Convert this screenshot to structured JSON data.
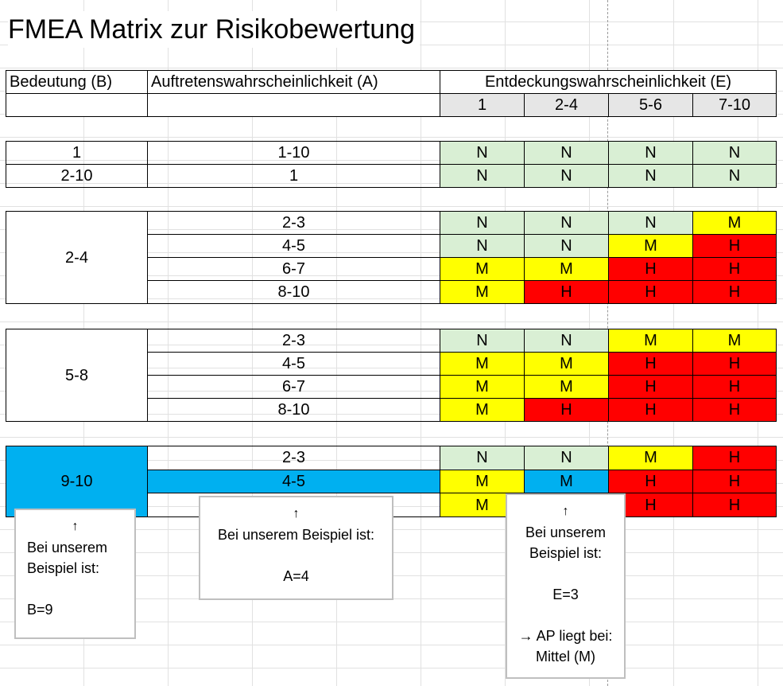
{
  "title": "FMEA Matrix zur Risikobewertung",
  "header": {
    "col_b": "Bedeutung (B)",
    "col_a": "Auftretenswahrscheinlichkeit (A)",
    "col_e": "Entdeckungswahrscheinlichkeit (E)",
    "e_categories": [
      "1",
      "2-4",
      "5-6",
      "7-10"
    ]
  },
  "groups": [
    {
      "rows": [
        {
          "b": "1",
          "a": "1-10",
          "e": [
            "N",
            "N",
            "N",
            "N"
          ]
        },
        {
          "b": "2-10",
          "a": "1",
          "e": [
            "N",
            "N",
            "N",
            "N"
          ]
        }
      ]
    },
    {
      "b": "2-4",
      "rows": [
        {
          "a": "2-3",
          "e": [
            "N",
            "N",
            "N",
            "M"
          ]
        },
        {
          "a": "4-5",
          "e": [
            "N",
            "N",
            "M",
            "H"
          ]
        },
        {
          "a": "6-7",
          "e": [
            "M",
            "M",
            "H",
            "H"
          ]
        },
        {
          "a": "8-10",
          "e": [
            "M",
            "H",
            "H",
            "H"
          ]
        }
      ]
    },
    {
      "b": "5-8",
      "rows": [
        {
          "a": "2-3",
          "e": [
            "N",
            "N",
            "M",
            "M"
          ]
        },
        {
          "a": "4-5",
          "e": [
            "M",
            "M",
            "H",
            "H"
          ]
        },
        {
          "a": "6-7",
          "e": [
            "M",
            "M",
            "H",
            "H"
          ]
        },
        {
          "a": "8-10",
          "e": [
            "M",
            "H",
            "H",
            "H"
          ]
        }
      ]
    },
    {
      "b": "9-10",
      "rows": [
        {
          "a": "2-3",
          "e": [
            "N",
            "N",
            "M",
            "H"
          ]
        },
        {
          "a": "4-5",
          "e": [
            "M",
            "M",
            "H",
            "H"
          ]
        },
        {
          "a": "",
          "e": [
            "M",
            "",
            "H",
            "H"
          ]
        }
      ]
    }
  ],
  "callouts": {
    "b": {
      "arrow": "↑",
      "line1": "Bei unserem",
      "line2": "Beispiel ist:",
      "value": "B=9"
    },
    "a": {
      "arrow": "↑",
      "line1": "Bei unserem Beispiel ist:",
      "value": "A=4"
    },
    "e": {
      "arrow": "↑",
      "line1": "Bei unserem",
      "line2": "Beispiel ist:",
      "value": "E=3",
      "result1": "→ AP liegt bei:",
      "result2": "Mittel (M)"
    }
  },
  "colors": {
    "N": "#d9efd4",
    "M": "#ffff00",
    "H": "#ff0000",
    "highlight": "#00b0f0",
    "header_gray": "#e6e6e6"
  }
}
